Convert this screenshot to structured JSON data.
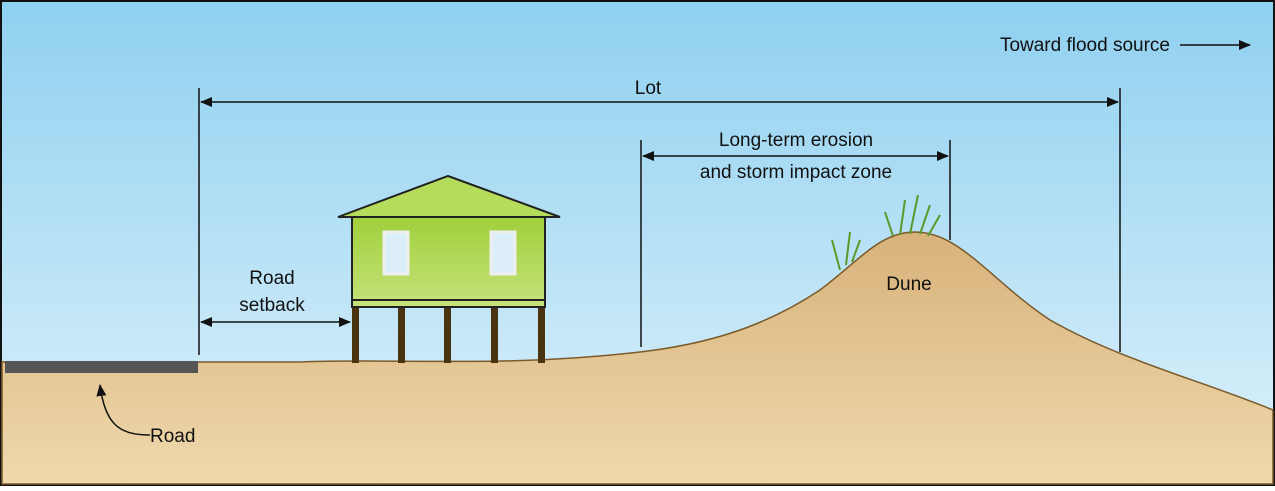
{
  "labels": {
    "flood_source": "Toward flood source",
    "lot": "Lot",
    "erosion_line1": "Long-term erosion",
    "erosion_line2": "and storm impact zone",
    "road_setback_line1": "Road",
    "road_setback_line2": "setback",
    "dune": "Dune",
    "road": "Road"
  }
}
